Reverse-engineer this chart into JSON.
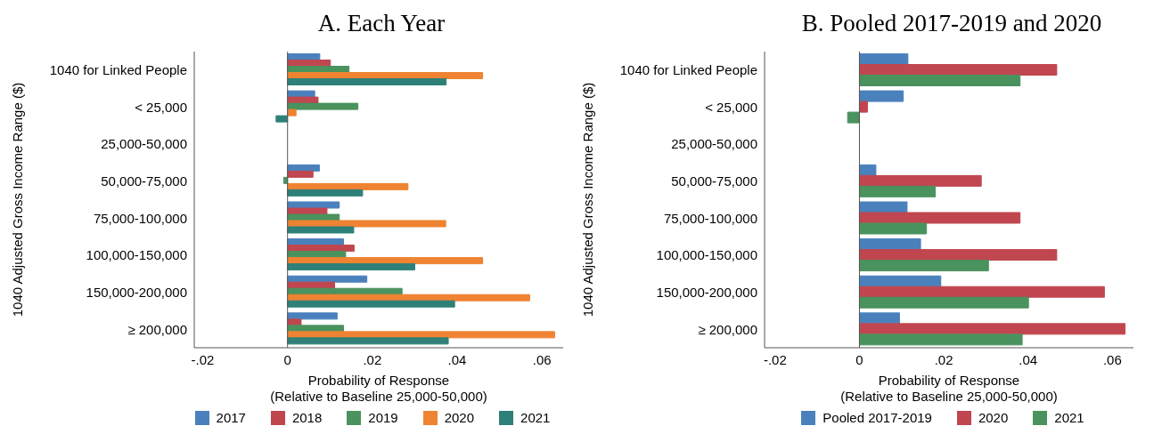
{
  "chart_data": [
    {
      "type": "bar",
      "orientation": "horizontal",
      "title": "A. Each Year",
      "xlabel": "Probability of Response\n(Relative to Baseline 25,000-50,000)",
      "ylabel": "1040 Adjusted Gross Income Range ($)",
      "categories": [
        "1040 for Linked People",
        "< 25,000",
        "25,000-50,000",
        "50,000-75,000",
        "75,000-100,000",
        "100,000-150,000",
        "150,000-200,000",
        "≥ 200,000"
      ],
      "series": [
        {
          "name": "2017",
          "color": "#4a81bd",
          "values": [
            0.0076,
            0.0064,
            null,
            0.0075,
            0.0122,
            0.0132,
            0.0187,
            0.0117
          ]
        },
        {
          "name": "2018",
          "color": "#c0464f",
          "values": [
            0.0101,
            0.0072,
            null,
            0.006,
            0.0093,
            0.0157,
            0.0111,
            0.0032
          ]
        },
        {
          "name": "2019",
          "color": "#4a925e",
          "values": [
            0.0145,
            0.0166,
            null,
            -0.0009,
            0.0122,
            0.0137,
            0.027,
            0.0132
          ]
        },
        {
          "name": "2020",
          "color": "#ef8332",
          "values": [
            0.046,
            0.002,
            null,
            0.0284,
            0.0373,
            0.046,
            0.0571,
            0.063
          ]
        },
        {
          "name": "2021",
          "color": "#2e8078",
          "values": [
            0.0374,
            -0.0027,
            null,
            0.0177,
            0.0156,
            0.03,
            0.0394,
            0.0379
          ]
        }
      ],
      "xlim": [
        -0.022,
        0.065
      ],
      "xticks": [
        {
          "value": -0.02,
          "label": "-.02"
        },
        {
          "value": 0,
          "label": "0"
        },
        {
          "value": 0.02,
          "label": ".02"
        },
        {
          "value": 0.04,
          "label": ".04"
        },
        {
          "value": 0.06,
          "label": ".06"
        }
      ],
      "ref_lines": [
        {
          "axis": "x",
          "value": 0,
          "label": null,
          "color": "#555555"
        }
      ],
      "grid": false,
      "legend": "bottom"
    },
    {
      "type": "bar",
      "orientation": "horizontal",
      "title": "B. Pooled 2017-2019 and 2020",
      "xlabel": "Probability of Response\n(Relative to Baseline 25,000-50,000)",
      "ylabel": "1040 Adjusted Gross Income Range ($)",
      "categories": [
        "1040 for Linked People",
        "< 25,000",
        "25,000-50,000",
        "50,000-75,000",
        "75,000-100,000",
        "100,000-150,000",
        "150,000-200,000",
        "≥ 200,000"
      ],
      "series": [
        {
          "name": "Pooled 2017-2019",
          "color": "#4a81bd",
          "values": [
            0.0115,
            0.0104,
            null,
            0.0039,
            0.0113,
            0.0145,
            0.0193,
            0.0095
          ]
        },
        {
          "name": "2020",
          "color": "#c0464f",
          "values": [
            0.0468,
            0.0019,
            null,
            0.0289,
            0.0381,
            0.0468,
            0.0581,
            0.063
          ]
        },
        {
          "name": "2021",
          "color": "#4a925e",
          "values": [
            0.0381,
            -0.0028,
            null,
            0.018,
            0.0159,
            0.0306,
            0.0401,
            0.0386
          ]
        }
      ],
      "xlim": [
        -0.0225,
        0.065
      ],
      "xticks": [
        {
          "value": -0.02,
          "label": "-.02"
        },
        {
          "value": 0,
          "label": "0"
        },
        {
          "value": 0.02,
          "label": ".02"
        },
        {
          "value": 0.04,
          "label": ".04"
        },
        {
          "value": 0.06,
          "label": ".06"
        }
      ],
      "ref_lines": [
        {
          "axis": "x",
          "value": 0,
          "label": null,
          "color": "#555555"
        }
      ],
      "grid": false,
      "legend": "bottom"
    }
  ]
}
